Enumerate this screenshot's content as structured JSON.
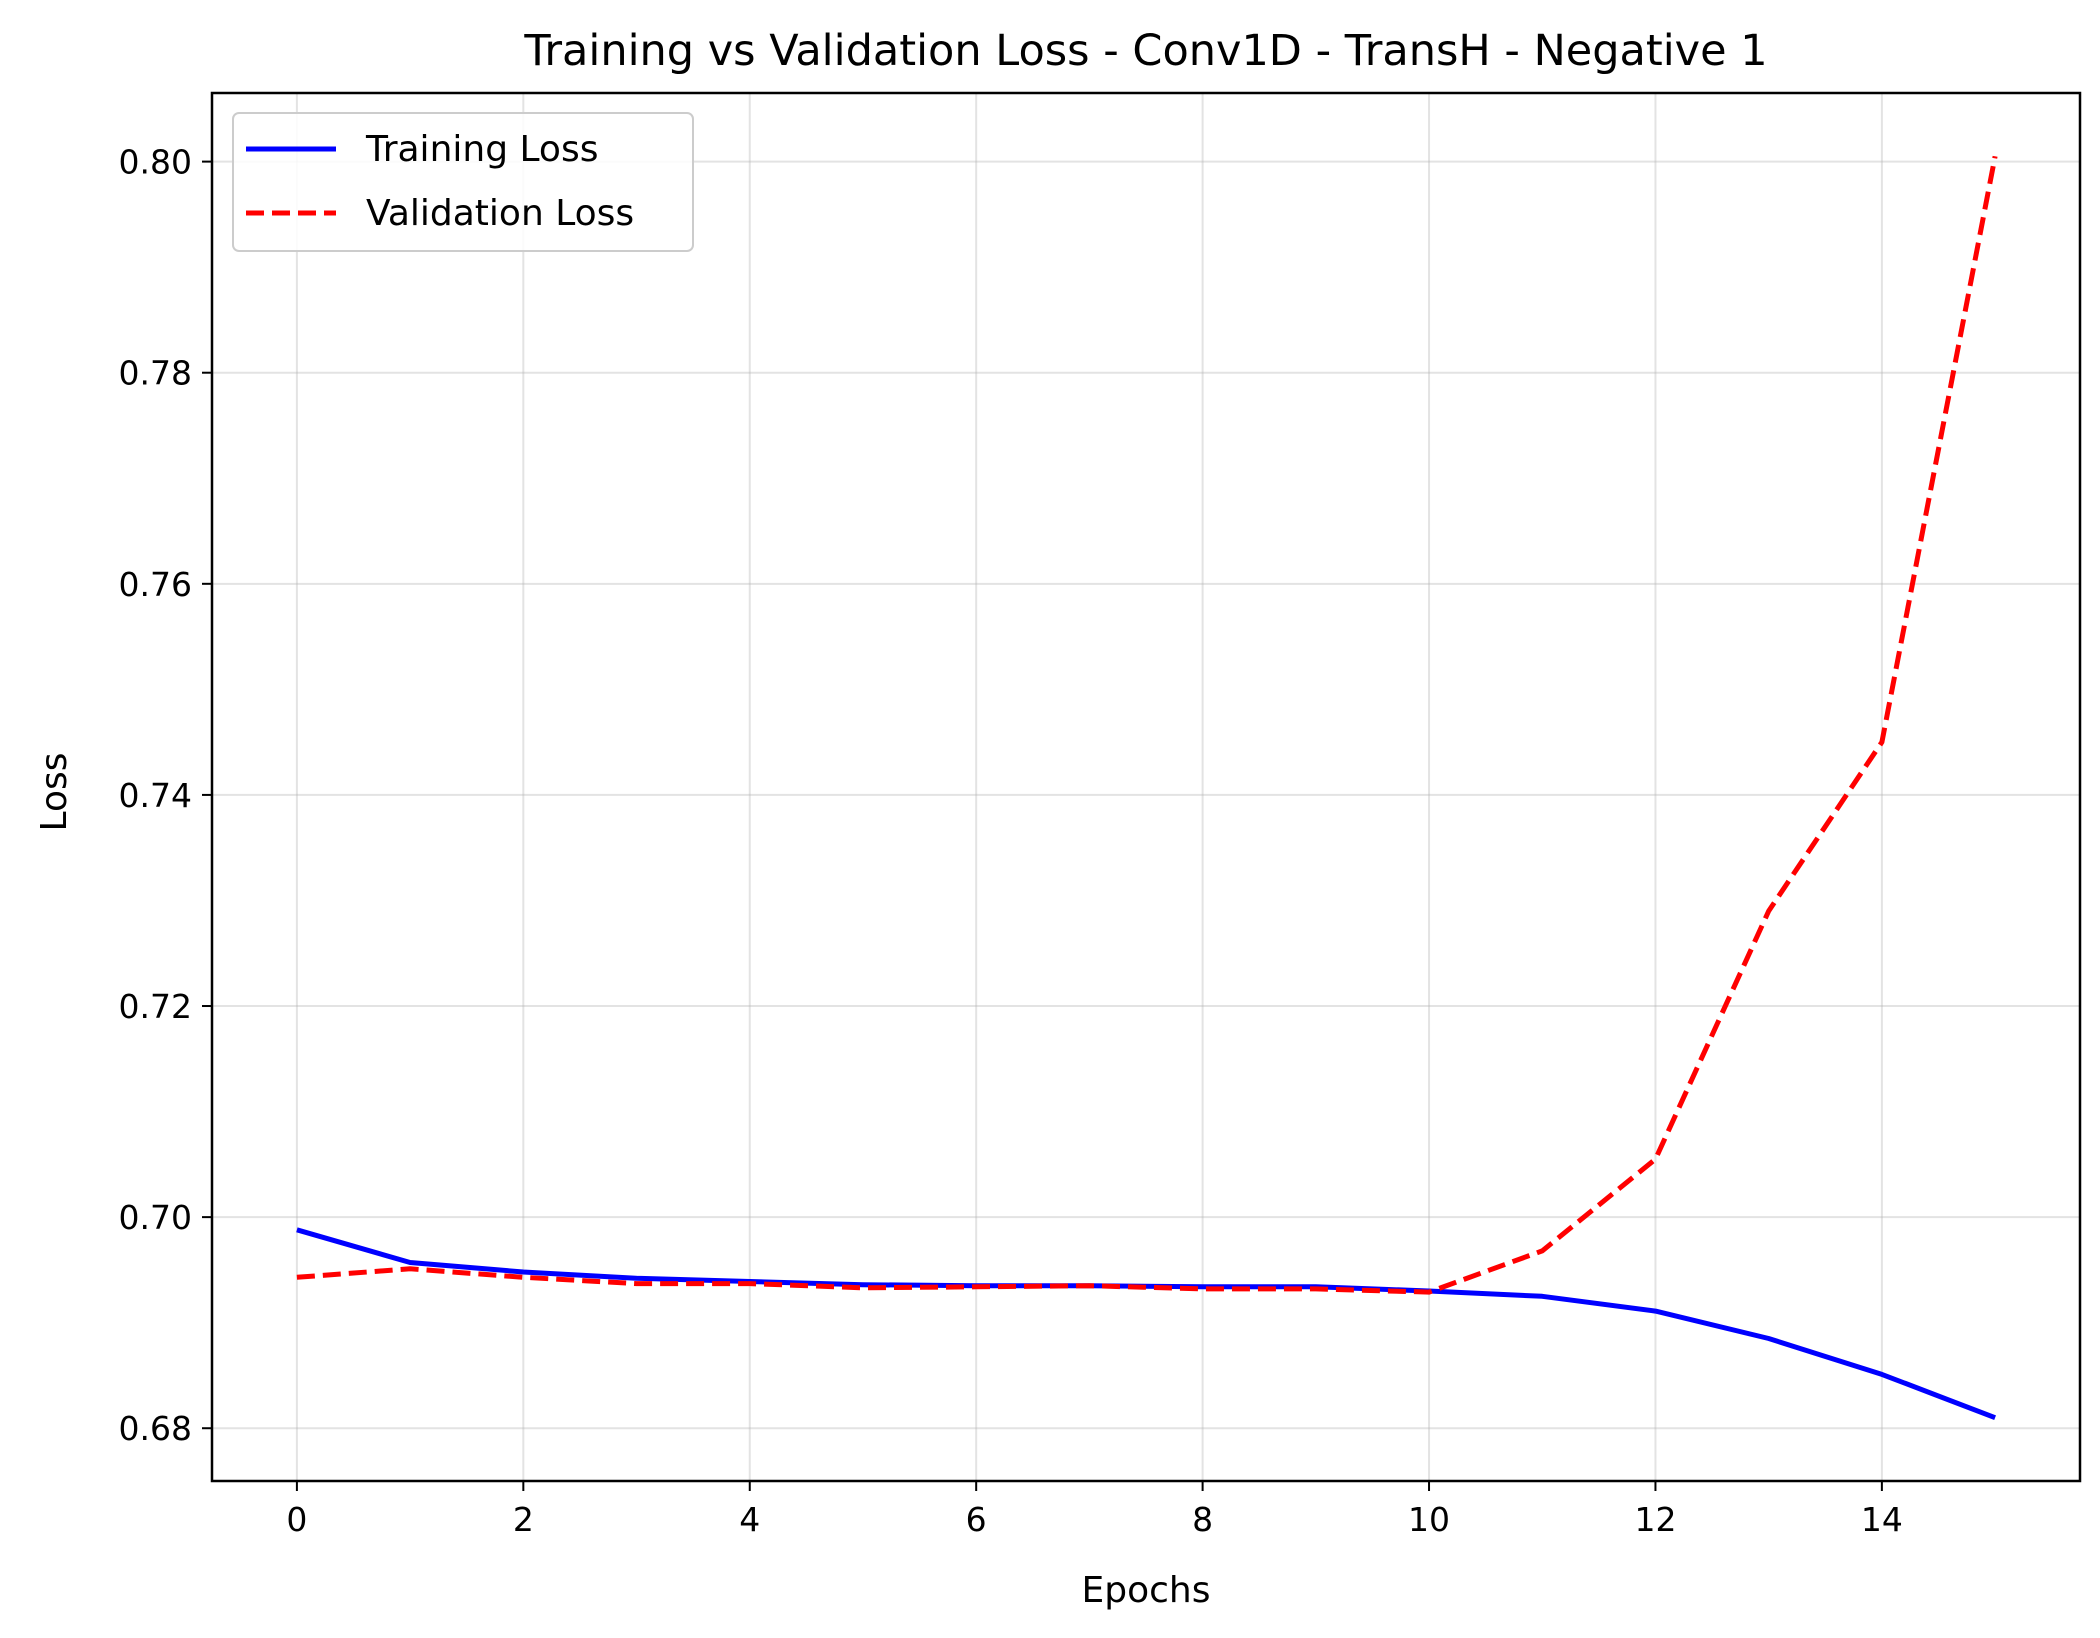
{
  "chart_data": {
    "type": "line",
    "title": "Training vs Validation Loss - Conv1D - TransH - Negative 1",
    "xlabel": "Epochs",
    "ylabel": "Loss",
    "xlim": [
      -0.75,
      15.75
    ],
    "ylim": [
      0.675,
      0.8065
    ],
    "xticks": [
      0,
      2,
      4,
      6,
      8,
      10,
      12,
      14
    ],
    "xtick_labels": [
      "0",
      "2",
      "4",
      "6",
      "8",
      "10",
      "12",
      "14"
    ],
    "yticks": [
      0.68,
      0.7,
      0.72,
      0.74,
      0.76,
      0.78,
      0.8
    ],
    "ytick_labels": [
      "0.68",
      "0.70",
      "0.72",
      "0.74",
      "0.76",
      "0.78",
      "0.80"
    ],
    "grid": true,
    "legend_position": "top-left",
    "x": [
      0,
      1,
      2,
      3,
      4,
      5,
      6,
      7,
      8,
      9,
      10,
      11,
      12,
      13,
      14,
      15
    ],
    "series": [
      {
        "name": "Training Loss",
        "color": "#0000ff",
        "style": "solid",
        "values": [
          0.6988,
          0.6957,
          0.6948,
          0.6942,
          0.6939,
          0.6936,
          0.6935,
          0.6935,
          0.6934,
          0.6934,
          0.693,
          0.6925,
          0.6911,
          0.6885,
          0.6851,
          0.681
        ]
      },
      {
        "name": "Validation Loss",
        "color": "#ff0000",
        "style": "dashed",
        "values": [
          0.6943,
          0.6951,
          0.6943,
          0.6937,
          0.6937,
          0.6933,
          0.6934,
          0.6935,
          0.6932,
          0.6932,
          0.6929,
          0.6968,
          0.7055,
          0.729,
          0.745,
          0.8005
        ]
      }
    ]
  }
}
